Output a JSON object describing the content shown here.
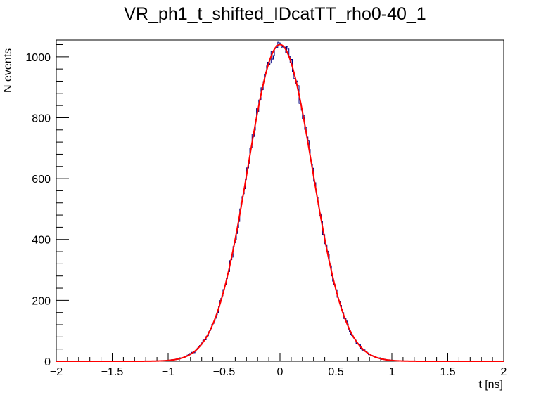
{
  "chart_data": {
    "type": "histogram",
    "title": "VR_ph1_t_shifted_IDcatTT_rho0-40_1",
    "xlabel": "t [ns]",
    "ylabel": "N events",
    "xlim": [
      -2,
      2
    ],
    "ylim": [
      0,
      1055
    ],
    "x_ticks": [
      -2,
      -1.5,
      -1,
      -0.5,
      0,
      0.5,
      1,
      1.5,
      2
    ],
    "x_tick_labels": [
      "−2",
      "−1.5",
      "−1",
      "−0.5",
      "0",
      "0.5",
      "1",
      "1.5",
      "2"
    ],
    "y_ticks": [
      0,
      200,
      400,
      600,
      800,
      1000
    ],
    "y_tick_labels": [
      "0",
      "200",
      "400",
      "600",
      "800",
      "1000"
    ],
    "grid": false,
    "legend": "none",
    "series": [
      {
        "kind": "histogram",
        "bins": 400,
        "color": "#000080",
        "approx_shape": "gaussian",
        "peak": 1040,
        "mean": 0.0,
        "sigma": 0.29,
        "noise_amplitude": 18
      },
      {
        "kind": "fit",
        "color": "#ff0000",
        "shape": "gaussian",
        "amplitude": 1040,
        "mean": 0.0,
        "sigma": 0.29
      }
    ]
  }
}
